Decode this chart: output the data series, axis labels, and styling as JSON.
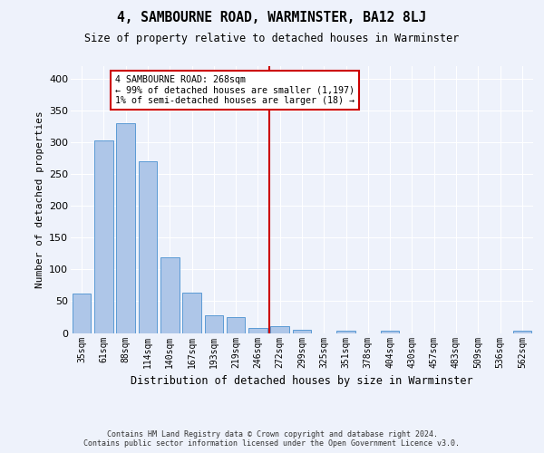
{
  "title": "4, SAMBOURNE ROAD, WARMINSTER, BA12 8LJ",
  "subtitle": "Size of property relative to detached houses in Warminster",
  "xlabel": "Distribution of detached houses by size in Warminster",
  "ylabel": "Number of detached properties",
  "bar_labels": [
    "35sqm",
    "61sqm",
    "88sqm",
    "114sqm",
    "140sqm",
    "167sqm",
    "193sqm",
    "219sqm",
    "246sqm",
    "272sqm",
    "299sqm",
    "325sqm",
    "351sqm",
    "378sqm",
    "404sqm",
    "430sqm",
    "457sqm",
    "483sqm",
    "509sqm",
    "536sqm",
    "562sqm"
  ],
  "bar_values": [
    62,
    303,
    329,
    270,
    119,
    64,
    28,
    25,
    8,
    11,
    5,
    0,
    3,
    0,
    3,
    0,
    0,
    0,
    0,
    0,
    3
  ],
  "bar_color": "#aec6e8",
  "bar_edge_color": "#5b9bd5",
  "background_color": "#eef2fb",
  "grid_color": "#ffffff",
  "marker_line_color": "#cc0000",
  "annotation_line1": "4 SAMBOURNE ROAD: 268sqm",
  "annotation_line2": "← 99% of detached houses are smaller (1,197)",
  "annotation_line3": "1% of semi-detached houses are larger (18) →",
  "footer_line1": "Contains HM Land Registry data © Crown copyright and database right 2024.",
  "footer_line2": "Contains public sector information licensed under the Open Government Licence v3.0.",
  "ylim": [
    0,
    420
  ],
  "yticks": [
    0,
    50,
    100,
    150,
    200,
    250,
    300,
    350,
    400
  ],
  "marker_bar_index": 8,
  "n_bars": 21
}
